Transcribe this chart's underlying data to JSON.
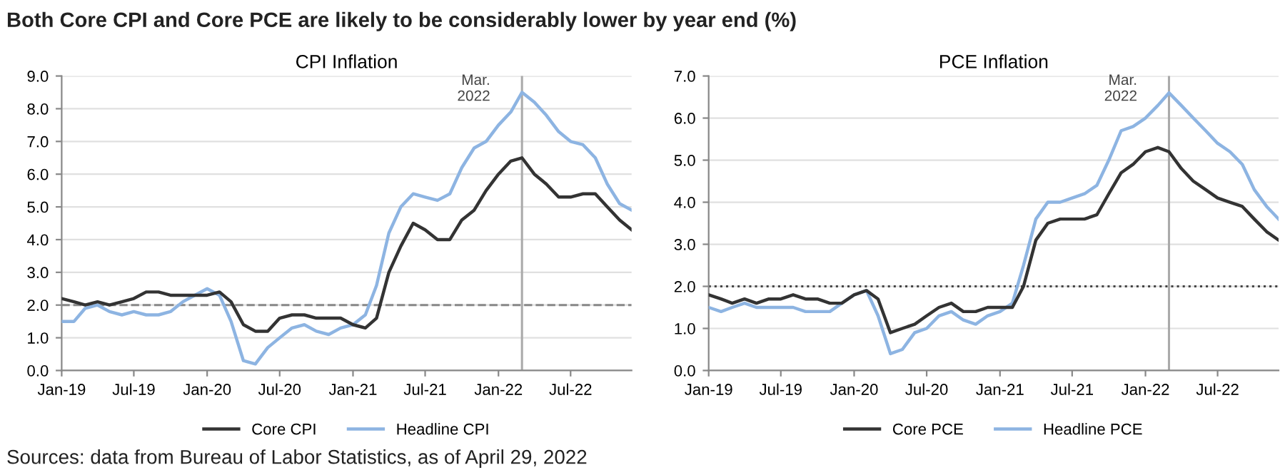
{
  "chart_data": [
    {
      "type": "line",
      "title": "CPI Inflation",
      "annotations": [
        "Both Core CPI and Core PCE are likely to be considerably lower by year end (%)",
        "Sources: data from Bureau of Labor Statistics, as of April 29, 2022"
      ],
      "x": [
        "2019-01",
        "2019-02",
        "2019-03",
        "2019-04",
        "2019-05",
        "2019-06",
        "2019-07",
        "2019-08",
        "2019-09",
        "2019-10",
        "2019-11",
        "2019-12",
        "2020-01",
        "2020-02",
        "2020-03",
        "2020-04",
        "2020-05",
        "2020-06",
        "2020-07",
        "2020-08",
        "2020-09",
        "2020-10",
        "2020-11",
        "2020-12",
        "2021-01",
        "2021-02",
        "2021-03",
        "2021-04",
        "2021-05",
        "2021-06",
        "2021-07",
        "2021-08",
        "2021-09",
        "2021-10",
        "2021-11",
        "2021-12",
        "2022-01",
        "2022-02",
        "2022-03",
        "2022-04",
        "2022-05",
        "2022-06",
        "2022-07",
        "2022-08",
        "2022-09",
        "2022-10",
        "2022-11",
        "2022-12"
      ],
      "series": [
        {
          "name": "Core CPI",
          "color": "#333333",
          "values": [
            2.2,
            2.1,
            2.0,
            2.1,
            2.0,
            2.1,
            2.2,
            2.4,
            2.4,
            2.3,
            2.3,
            2.3,
            2.3,
            2.4,
            2.1,
            1.4,
            1.2,
            1.2,
            1.6,
            1.7,
            1.7,
            1.6,
            1.6,
            1.6,
            1.4,
            1.3,
            1.6,
            3.0,
            3.8,
            4.5,
            4.3,
            4.0,
            4.0,
            4.6,
            4.9,
            5.5,
            6.0,
            6.4,
            6.5,
            6.0,
            5.7,
            5.3,
            5.3,
            5.4,
            5.4,
            5.0,
            4.6,
            4.3
          ]
        },
        {
          "name": "Headline CPI",
          "color": "#8db4e2",
          "values": [
            1.5,
            1.5,
            1.9,
            2.0,
            1.8,
            1.7,
            1.8,
            1.7,
            1.7,
            1.8,
            2.1,
            2.3,
            2.5,
            2.3,
            1.5,
            0.3,
            0.2,
            0.7,
            1.0,
            1.3,
            1.4,
            1.2,
            1.1,
            1.3,
            1.4,
            1.7,
            2.6,
            4.2,
            5.0,
            5.4,
            5.3,
            5.2,
            5.4,
            6.2,
            6.8,
            7.0,
            7.5,
            7.9,
            8.5,
            8.2,
            7.8,
            7.3,
            7.0,
            6.9,
            6.5,
            5.7,
            5.1,
            4.9
          ]
        }
      ],
      "xlim": [
        "2019-01",
        "2022-12"
      ],
      "xticks": [
        {
          "value": "2019-01",
          "label": "Jan-19"
        },
        {
          "value": "2019-07",
          "label": "Jul-19"
        },
        {
          "value": "2020-01",
          "label": "Jan-20"
        },
        {
          "value": "2020-07",
          "label": "Jul-20"
        },
        {
          "value": "2021-01",
          "label": "Jan-21"
        },
        {
          "value": "2021-07",
          "label": "Jul-21"
        },
        {
          "value": "2022-01",
          "label": "Jan-22"
        },
        {
          "value": "2022-07",
          "label": "Jul-22"
        }
      ],
      "ylim": [
        0,
        9
      ],
      "yticks": [
        {
          "value": 0,
          "label": "0.0"
        },
        {
          "value": 1,
          "label": "1.0"
        },
        {
          "value": 2,
          "label": "2.0"
        },
        {
          "value": 3,
          "label": "3.0"
        },
        {
          "value": 4,
          "label": "4.0"
        },
        {
          "value": 5,
          "label": "5.0"
        },
        {
          "value": 6,
          "label": "6.0"
        },
        {
          "value": 7,
          "label": "7.0"
        },
        {
          "value": 8,
          "label": "8.0"
        },
        {
          "value": 9,
          "label": "9.0"
        }
      ],
      "ref_lines": [
        {
          "axis": "y",
          "value": 2,
          "color": "#888888",
          "line_style": "dashed"
        },
        {
          "axis": "x",
          "value": "2022-03",
          "label": "Mar.\n2022",
          "color": "#aaaaaa",
          "line_style": "solid"
        }
      ],
      "grid": "y",
      "legend": "bottom",
      "marker": "none",
      "line_style": "solid"
    },
    {
      "type": "line",
      "title": "PCE Inflation",
      "x": [
        "2019-01",
        "2019-02",
        "2019-03",
        "2019-04",
        "2019-05",
        "2019-06",
        "2019-07",
        "2019-08",
        "2019-09",
        "2019-10",
        "2019-11",
        "2019-12",
        "2020-01",
        "2020-02",
        "2020-03",
        "2020-04",
        "2020-05",
        "2020-06",
        "2020-07",
        "2020-08",
        "2020-09",
        "2020-10",
        "2020-11",
        "2020-12",
        "2021-01",
        "2021-02",
        "2021-03",
        "2021-04",
        "2021-05",
        "2021-06",
        "2021-07",
        "2021-08",
        "2021-09",
        "2021-10",
        "2021-11",
        "2021-12",
        "2022-01",
        "2022-02",
        "2022-03",
        "2022-04",
        "2022-05",
        "2022-06",
        "2022-07",
        "2022-08",
        "2022-09",
        "2022-10",
        "2022-11",
        "2022-12"
      ],
      "series": [
        {
          "name": "Core PCE",
          "color": "#333333",
          "values": [
            1.8,
            1.7,
            1.6,
            1.7,
            1.6,
            1.7,
            1.7,
            1.8,
            1.7,
            1.7,
            1.6,
            1.6,
            1.8,
            1.9,
            1.7,
            0.9,
            1.0,
            1.1,
            1.3,
            1.5,
            1.6,
            1.4,
            1.4,
            1.5,
            1.5,
            1.5,
            2.0,
            3.1,
            3.5,
            3.6,
            3.6,
            3.6,
            3.7,
            4.2,
            4.7,
            4.9,
            5.2,
            5.3,
            5.2,
            4.8,
            4.5,
            4.3,
            4.1,
            4.0,
            3.9,
            3.6,
            3.3,
            3.1
          ]
        },
        {
          "name": "Headline PCE",
          "color": "#8db4e2",
          "values": [
            1.5,
            1.4,
            1.5,
            1.6,
            1.5,
            1.5,
            1.5,
            1.5,
            1.4,
            1.4,
            1.4,
            1.6,
            1.8,
            1.9,
            1.3,
            0.4,
            0.5,
            0.9,
            1.0,
            1.3,
            1.4,
            1.2,
            1.1,
            1.3,
            1.4,
            1.6,
            2.5,
            3.6,
            4.0,
            4.0,
            4.1,
            4.2,
            4.4,
            5.0,
            5.7,
            5.8,
            6.0,
            6.3,
            6.6,
            6.3,
            6.0,
            5.7,
            5.4,
            5.2,
            4.9,
            4.3,
            3.9,
            3.6
          ]
        }
      ],
      "xlim": [
        "2019-01",
        "2022-12"
      ],
      "xticks": [
        {
          "value": "2019-01",
          "label": "Jan-19"
        },
        {
          "value": "2019-07",
          "label": "Jul-19"
        },
        {
          "value": "2020-01",
          "label": "Jan-20"
        },
        {
          "value": "2020-07",
          "label": "Jul-20"
        },
        {
          "value": "2021-01",
          "label": "Jan-21"
        },
        {
          "value": "2021-07",
          "label": "Jul-21"
        },
        {
          "value": "2022-01",
          "label": "Jan-22"
        },
        {
          "value": "2022-07",
          "label": "Jul-22"
        }
      ],
      "ylim": [
        0,
        7
      ],
      "yticks": [
        {
          "value": 0,
          "label": "0.0"
        },
        {
          "value": 1,
          "label": "1.0"
        },
        {
          "value": 2,
          "label": "2.0"
        },
        {
          "value": 3,
          "label": "3.0"
        },
        {
          "value": 4,
          "label": "4.0"
        },
        {
          "value": 5,
          "label": "5.0"
        },
        {
          "value": 6,
          "label": "6.0"
        },
        {
          "value": 7,
          "label": "7.0"
        }
      ],
      "ref_lines": [
        {
          "axis": "y",
          "value": 2,
          "color": "#444444",
          "line_style": "dotted"
        },
        {
          "axis": "x",
          "value": "2022-03",
          "label": "Mar.\n2022",
          "color": "#aaaaaa",
          "line_style": "solid"
        }
      ],
      "grid": "y",
      "legend": "bottom",
      "marker": "none",
      "line_style": "solid"
    }
  ]
}
